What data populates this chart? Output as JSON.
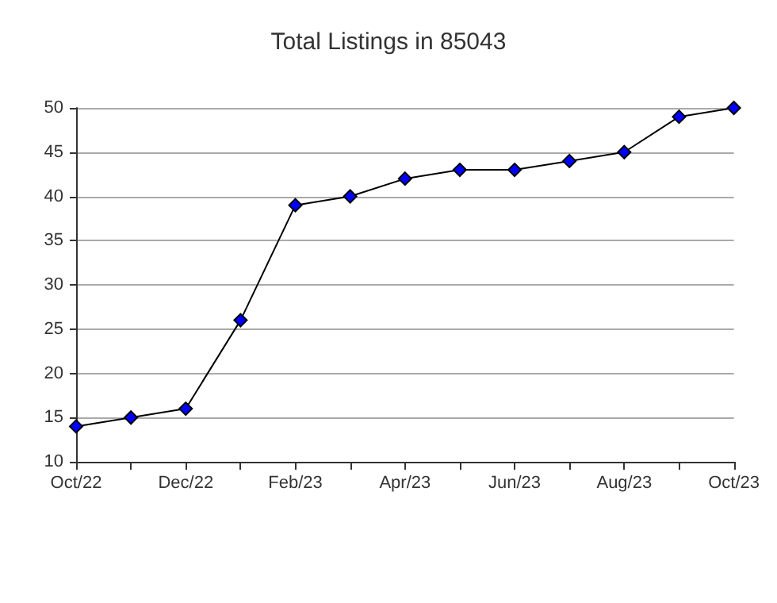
{
  "chart_data": {
    "type": "line",
    "title": "Total Listings in 85043",
    "categories": [
      "Oct/22",
      null,
      "Dec/22",
      null,
      "Feb/23",
      null,
      "Apr/23",
      null,
      "Jun/23",
      null,
      "Aug/23",
      null,
      "Oct/23"
    ],
    "series": [
      {
        "color": "#0000ff",
        "values": [
          14,
          15,
          16,
          26,
          39,
          40,
          42,
          43,
          43,
          44,
          45,
          49,
          50
        ]
      }
    ],
    "ylim": [
      10,
      50
    ],
    "yticks": [
      10,
      15,
      20,
      25,
      30,
      35,
      40,
      45,
      50
    ],
    "grid": "y",
    "marker": "diamond",
    "line_style": "solid"
  }
}
